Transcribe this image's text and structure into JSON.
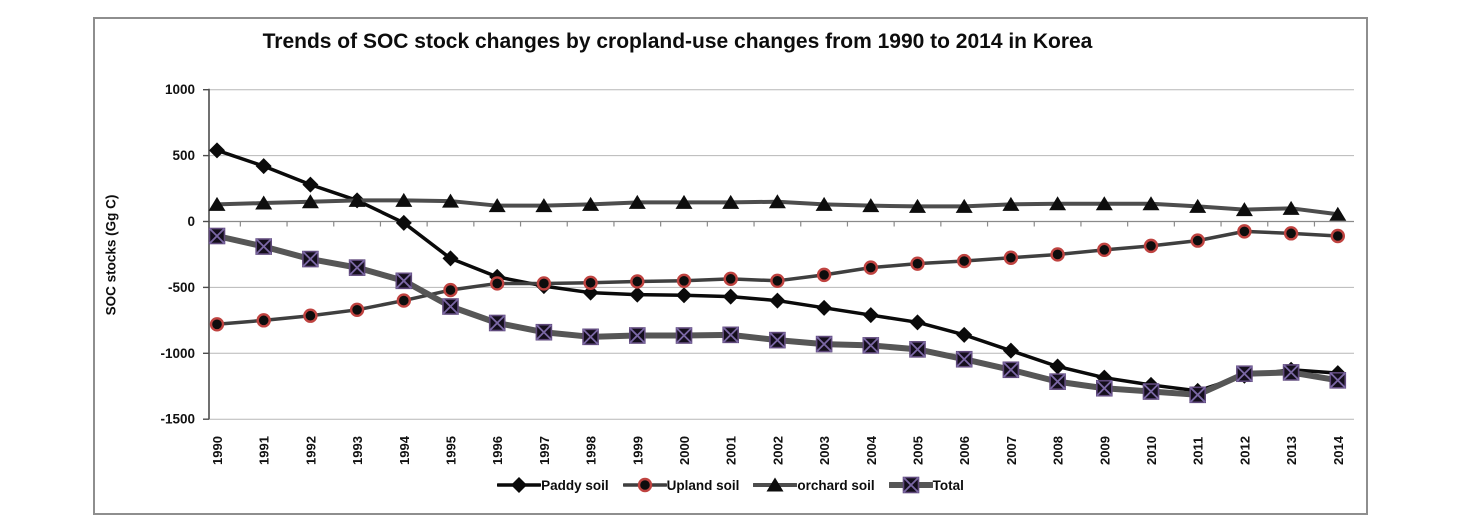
{
  "chart_data": {
    "type": "line",
    "title": "Trends of SOC stock changes by cropland-use changes from 1990 to 2014 in Korea",
    "xlabel": "",
    "ylabel": "SOC stocks (Gg C)",
    "ylim": [
      -1500,
      1000
    ],
    "yticks": [
      1000,
      500,
      0,
      -500,
      -1000,
      -1500
    ],
    "grid": "horizontal",
    "legend_position": "bottom",
    "categories": [
      "1990",
      "1991",
      "1992",
      "1993",
      "1994",
      "1995",
      "1996",
      "1997",
      "1998",
      "1999",
      "2000",
      "2001",
      "2002",
      "2003",
      "2004",
      "2005",
      "2006",
      "2007",
      "2008",
      "2009",
      "2010",
      "2011",
      "2012",
      "2013",
      "2014"
    ],
    "series": [
      {
        "name": "Paddy soil",
        "marker": "diamond",
        "line_color": "#0a0a0a",
        "marker_fill": "#0a0a0a",
        "line_width": 3.5,
        "values": [
          540,
          420,
          280,
          160,
          -10,
          -280,
          -420,
          -490,
          -540,
          -555,
          -560,
          -570,
          -600,
          -655,
          -710,
          -765,
          -860,
          -980,
          -1100,
          -1185,
          -1240,
          -1285,
          -1170,
          -1125,
          -1150
        ]
      },
      {
        "name": "Upland soil",
        "marker": "circle",
        "line_color": "#3f3f3f",
        "marker_fill": "#0d0d0d",
        "marker_stroke": "#bf4340",
        "line_width": 3.5,
        "values": [
          -780,
          -750,
          -715,
          -670,
          -600,
          -520,
          -470,
          -470,
          -465,
          -455,
          -450,
          -435,
          -450,
          -405,
          -350,
          -320,
          -300,
          -275,
          -250,
          -215,
          -185,
          -145,
          -75,
          -90,
          -110
        ]
      },
      {
        "name": "orchard soil",
        "marker": "triangle",
        "line_color": "#4d4d4d",
        "marker_fill": "#0d0d0d",
        "line_width": 4,
        "values": [
          130,
          140,
          150,
          160,
          160,
          155,
          120,
          120,
          130,
          145,
          145,
          145,
          150,
          130,
          120,
          115,
          115,
          130,
          135,
          135,
          135,
          115,
          90,
          100,
          55
        ]
      },
      {
        "name": "Total",
        "marker": "square-x",
        "line_color": "#565656",
        "marker_fill": "#140e1c",
        "marker_stroke": "#5f497b",
        "marker_x_color": "#7b68a5",
        "line_width": 6,
        "values": [
          -110,
          -190,
          -285,
          -350,
          -450,
          -645,
          -770,
          -840,
          -875,
          -865,
          -865,
          -860,
          -900,
          -930,
          -940,
          -970,
          -1045,
          -1125,
          -1215,
          -1265,
          -1290,
          -1315,
          -1155,
          -1145,
          -1205
        ]
      }
    ],
    "axis_colors": {
      "gridline": "#b7b7b7",
      "zero_axis": "#8a8a8a",
      "y_axis": "#4d4d4d",
      "tick_label": "#111111",
      "frame_border": "#8e8e8e"
    }
  }
}
